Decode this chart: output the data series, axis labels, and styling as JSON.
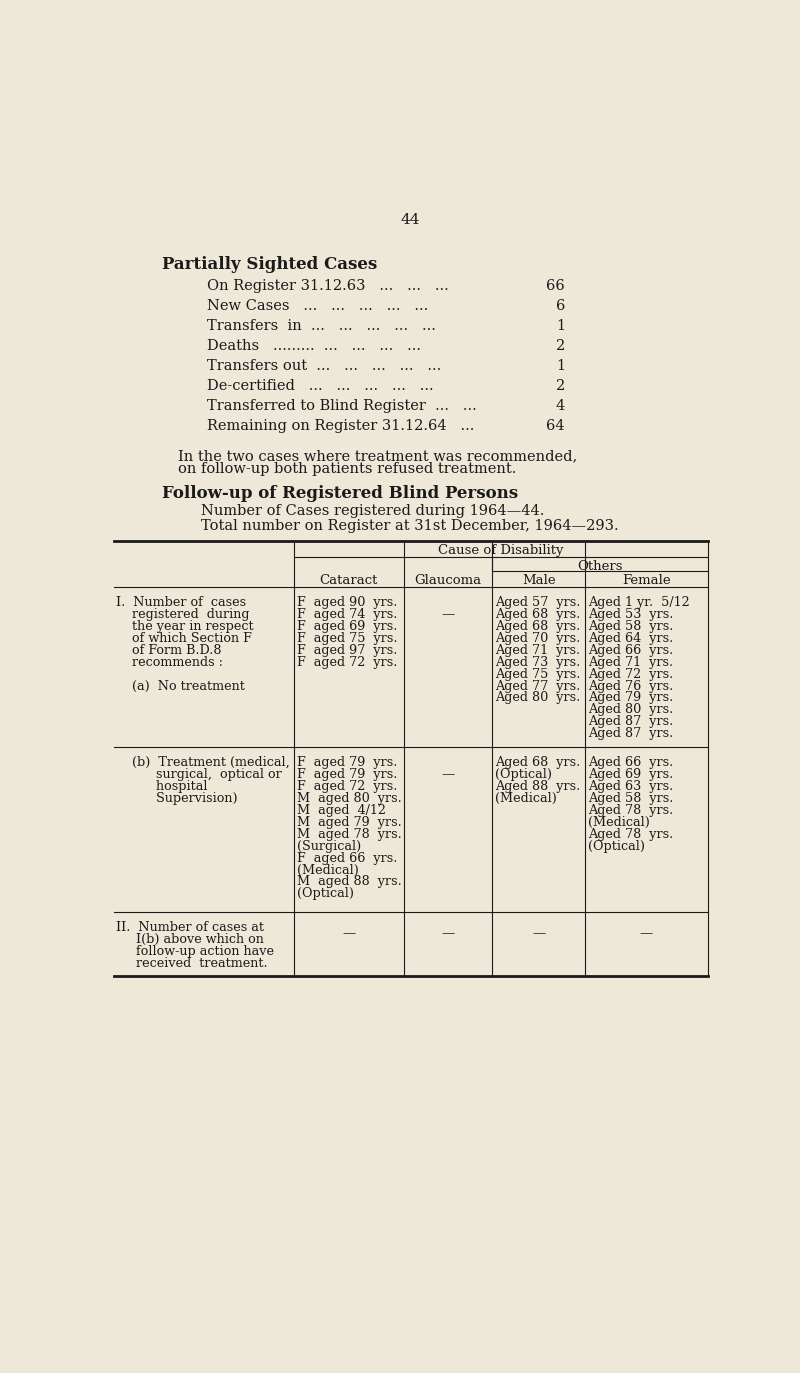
{
  "bg_color": "#ede8d8",
  "text_color": "#1a1a1a",
  "page_number": "44",
  "section1_title": "Partially Sighted Cases",
  "section1_rows": [
    [
      "On Register 31.12.63   ...   ...   ...",
      "66"
    ],
    [
      "New Cases   ...   ...   ...   ...   ...",
      "6"
    ],
    [
      "Transfers  in  ...   ...   ...   ...   ...",
      "1"
    ],
    [
      "Deaths   .........  ...   ...   ...   ...",
      "2"
    ],
    [
      "Transfers out  ...   ...   ...   ...   ...",
      "1"
    ],
    [
      "De-certified   ...   ...   ...   ...   ...",
      "2"
    ],
    [
      "Transferred to Blind Register  ...   ...",
      "4"
    ],
    [
      "Remaining on Register 31.12.64   ...",
      "64"
    ]
  ],
  "para1_line1": "In the two cases where treatment was recommended,",
  "para1_line2": "on follow-up both patients refused treatment.",
  "section2_title": "Follow-up of Registered Blind Persons",
  "section2_line1": "Number of Cases registered during 1964—44.",
  "section2_line2": "Total number on Register at 31st December, 1964—293.",
  "col_headers_top": "Cause of Disability",
  "col_header_others": "Others",
  "row_I_cataract": [
    "F  aged 90  yrs.",
    "F  aged 74  yrs.",
    "F  aged 69  yrs.",
    "F  aged 75  yrs.",
    "F  aged 97  yrs.",
    "F  aged 72  yrs."
  ],
  "row_I_male": [
    "Aged 57  yrs.",
    "Aged 68  yrs.",
    "Aged 68  yrs.",
    "Aged 70  yrs.",
    "Aged 71  yrs.",
    "Aged 73  yrs.",
    "Aged 75  yrs.",
    "Aged 77  yrs.",
    "Aged 80  yrs."
  ],
  "row_I_female": [
    "Aged 1 yr.  5/12",
    "Aged 53  yrs.",
    "Aged 58  yrs.",
    "Aged 64  yrs.",
    "Aged 66  yrs.",
    "Aged 71  yrs.",
    "Aged 72  yrs.",
    "Aged 76  yrs.",
    "Aged 79  yrs.",
    "Aged 80  yrs.",
    "Aged 87  yrs.",
    "Aged 87  yrs."
  ],
  "row_Ib_cataract": [
    "F  aged 79  yrs.",
    "F  aged 79  yrs.",
    "F  aged 72  yrs.",
    "M  aged 80  yrs.",
    "M  aged  4/12",
    "M  aged 79  yrs.",
    "M  aged 78  yrs.",
    "(Surgical)",
    "F  aged 66  yrs.",
    "(Medical)",
    "M  aged 88  yrs.",
    "(Optical)"
  ],
  "row_Ib_male": [
    "Aged 68  yrs.",
    "(Optical)",
    "Aged 88  yrs.",
    "(Medical)"
  ],
  "row_Ib_female": [
    "Aged 66  yrs.",
    "Aged 69  yrs.",
    "Aged 63  yrs.",
    "Aged 58  yrs.",
    "Aged 78  yrs.",
    "(Medical)",
    "Aged 78  yrs.",
    "(Optical)"
  ]
}
